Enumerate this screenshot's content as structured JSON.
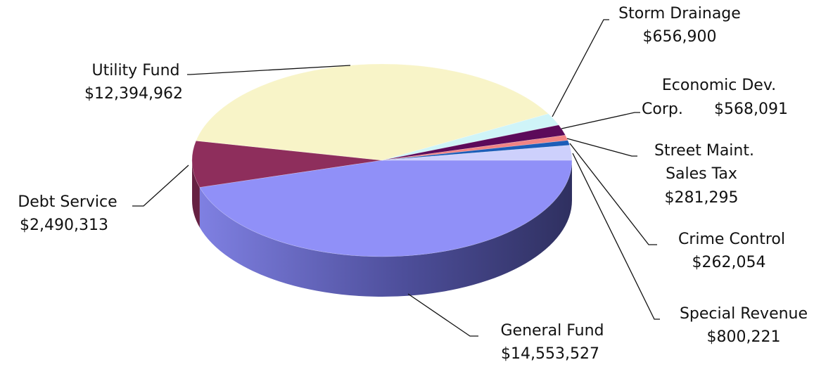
{
  "chart_data": {
    "type": "pie",
    "title": "",
    "style": "3d",
    "slices": [
      {
        "name": "General Fund",
        "value": 14553527,
        "value_label": "$14,553,527",
        "color": "#9090f8"
      },
      {
        "name": "Debt Service",
        "value": 2490313,
        "value_label": "$2,490,313",
        "color": "#8e2e5c"
      },
      {
        "name": "Utility Fund",
        "value": 12394962,
        "value_label": "$12,394,962",
        "color": "#f8f4c8"
      },
      {
        "name": "Storm Drainage",
        "value": 656900,
        "value_label": "$656,900",
        "color": "#cff4f8"
      },
      {
        "name": "Economic Dev. Corp.",
        "value": 568091,
        "value_label": "$568,091",
        "color": "#5c0a5a"
      },
      {
        "name": "Street Maint. Sales Tax",
        "value": 281295,
        "value_label": "$281,295",
        "color": "#f08484"
      },
      {
        "name": "Crime Control",
        "value": 262054,
        "value_label": "$262,054",
        "color": "#1c5db8"
      },
      {
        "name": "Special Revenue",
        "value": 800221,
        "value_label": "$800,221",
        "color": "#cdd0fc"
      }
    ]
  },
  "labels": {
    "storm_drainage": {
      "line1": "Storm Drainage",
      "line2": "$656,900"
    },
    "utility_fund": {
      "line1": "Utility Fund",
      "line2": "$12,394,962"
    },
    "economic_dev": {
      "line1": "Economic Dev.",
      "line2a": "Corp.",
      "line2b": "$568,091"
    },
    "street_maint": {
      "line1": "Street Maint.",
      "line2": "Sales Tax",
      "line3": "$281,295"
    },
    "debt_service": {
      "line1": "Debt Service",
      "line2": "$2,490,313"
    },
    "crime_control": {
      "line1": "Crime Control",
      "line2": "$262,054"
    },
    "special_revenue": {
      "line1": "Special Revenue",
      "line2": "$800,221"
    },
    "general_fund": {
      "line1": "General Fund",
      "line2": "$14,553,527"
    }
  }
}
